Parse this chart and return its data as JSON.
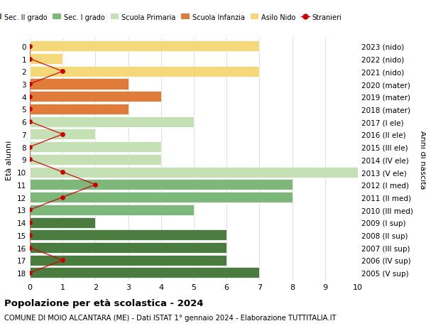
{
  "ages": [
    18,
    17,
    16,
    15,
    14,
    13,
    12,
    11,
    10,
    9,
    8,
    7,
    6,
    5,
    4,
    3,
    2,
    1,
    0
  ],
  "right_labels": [
    "2005 (V sup)",
    "2006 (IV sup)",
    "2007 (III sup)",
    "2008 (II sup)",
    "2009 (I sup)",
    "2010 (III med)",
    "2011 (II med)",
    "2012 (I med)",
    "2013 (V ele)",
    "2014 (IV ele)",
    "2015 (III ele)",
    "2016 (II ele)",
    "2017 (I ele)",
    "2018 (mater)",
    "2019 (mater)",
    "2020 (mater)",
    "2021 (nido)",
    "2022 (nido)",
    "2023 (nido)"
  ],
  "bar_values": [
    7,
    6,
    6,
    6,
    2,
    5,
    8,
    8,
    10,
    4,
    4,
    2,
    5,
    3,
    4,
    3,
    7,
    1,
    7
  ],
  "bar_colors": [
    "#4a7c3f",
    "#4a7c3f",
    "#4a7c3f",
    "#4a7c3f",
    "#4a7c3f",
    "#7db87a",
    "#7db87a",
    "#7db87a",
    "#c5e0b4",
    "#c5e0b4",
    "#c5e0b4",
    "#c5e0b4",
    "#c5e0b4",
    "#e07b39",
    "#e07b39",
    "#e07b39",
    "#f5d87a",
    "#f5d87a",
    "#f5d87a"
  ],
  "stranieri_values": [
    0,
    1,
    0,
    0,
    0,
    0,
    1,
    2,
    1,
    0,
    0,
    1,
    0,
    0,
    0,
    0,
    1,
    0,
    0
  ],
  "legend_labels": [
    "Sec. II grado",
    "Sec. I grado",
    "Scuola Primaria",
    "Scuola Infanzia",
    "Asilo Nido",
    "Stranieri"
  ],
  "legend_colors": [
    "#4a7c3f",
    "#7db87a",
    "#c5e0b4",
    "#e07b39",
    "#f5d87a",
    "#cc0000"
  ],
  "title_bold": "Popolazione per età scolastica - 2024",
  "subtitle": "COMUNE DI MOIO ALCANTARA (ME) - Dati ISTAT 1° gennaio 2024 - Elaborazione TUTTITALIA.IT",
  "ylabel_left": "Età alunni",
  "ylabel_right": "Anni di nascita",
  "xlim": [
    0,
    10
  ],
  "background_color": "#ffffff",
  "grid_color": "#dddddd"
}
